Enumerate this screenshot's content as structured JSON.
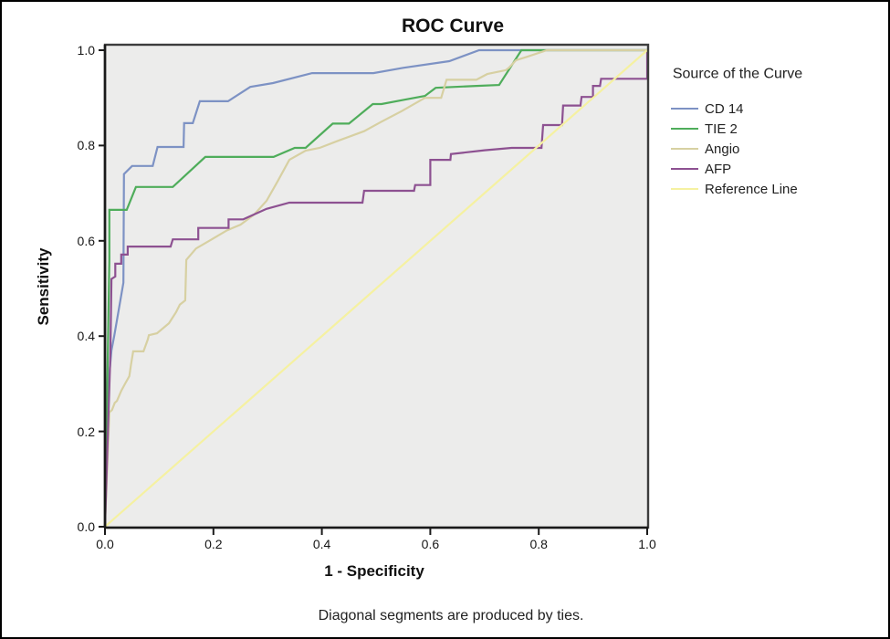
{
  "title": "ROC Curve",
  "axes": {
    "x_label": "1 - Specificity",
    "y_label": "Sensitivity",
    "x_ticks": [
      "0.0",
      "0.2",
      "0.4",
      "0.6",
      "0.8",
      "1.0"
    ],
    "y_ticks": [
      "0.0",
      "0.2",
      "0.4",
      "0.6",
      "0.8",
      "1.0"
    ]
  },
  "footnote": "Diagonal segments are produced by ties.",
  "legend": {
    "title": "Source of the Curve"
  },
  "colors": {
    "plot_background": "#ececeb",
    "plot_frame": "#3d3d3d",
    "axis_line": "#1a1a1a",
    "cd14_blue": "#7d92c4",
    "tie2_green": "#4fad5b",
    "angio_tan": "#d7d0a2",
    "afp_purple": "#8d5191",
    "reference_yellow": "#f5f1a1"
  },
  "chart_data": {
    "type": "line",
    "subtype": "roc-curves",
    "title": "ROC Curve",
    "xlabel": "1 - Specificity",
    "ylabel": "Sensitivity",
    "xlim": [
      0,
      1
    ],
    "ylim": [
      0,
      1
    ],
    "grid": false,
    "legend_position": "right",
    "legend_title": "Source of the Curve",
    "series": [
      {
        "name": "CD 14",
        "color": "#7d92c4",
        "points": [
          [
            0,
            0
          ],
          [
            0.008,
            0.32
          ],
          [
            0.012,
            0.37
          ],
          [
            0.017,
            0.4
          ],
          [
            0.034,
            0.512
          ],
          [
            0.035,
            0.74
          ],
          [
            0.05,
            0.757
          ],
          [
            0.088,
            0.757
          ],
          [
            0.097,
            0.797
          ],
          [
            0.145,
            0.797
          ],
          [
            0.146,
            0.847
          ],
          [
            0.162,
            0.847
          ],
          [
            0.175,
            0.893
          ],
          [
            0.227,
            0.893
          ],
          [
            0.268,
            0.923
          ],
          [
            0.31,
            0.931
          ],
          [
            0.382,
            0.952
          ],
          [
            0.495,
            0.952
          ],
          [
            0.55,
            0.963
          ],
          [
            0.635,
            0.977
          ],
          [
            0.69,
            1
          ],
          [
            1,
            1
          ]
        ]
      },
      {
        "name": "TIE 2",
        "color": "#4fad5b",
        "points": [
          [
            0,
            0
          ],
          [
            0.008,
            0.56
          ],
          [
            0.008,
            0.665
          ],
          [
            0.04,
            0.665
          ],
          [
            0.057,
            0.713
          ],
          [
            0.125,
            0.713
          ],
          [
            0.185,
            0.776
          ],
          [
            0.311,
            0.776
          ],
          [
            0.35,
            0.795
          ],
          [
            0.37,
            0.795
          ],
          [
            0.42,
            0.846
          ],
          [
            0.45,
            0.846
          ],
          [
            0.494,
            0.887
          ],
          [
            0.51,
            0.887
          ],
          [
            0.556,
            0.897
          ],
          [
            0.59,
            0.904
          ],
          [
            0.61,
            0.921
          ],
          [
            0.685,
            0.925
          ],
          [
            0.727,
            0.927
          ],
          [
            0.768,
            1
          ],
          [
            1,
            1
          ]
        ]
      },
      {
        "name": "Angio",
        "color": "#d7d0a2",
        "points": [
          [
            0,
            0
          ],
          [
            0.008,
            0.24
          ],
          [
            0.013,
            0.245
          ],
          [
            0.018,
            0.26
          ],
          [
            0.022,
            0.264
          ],
          [
            0.03,
            0.285
          ],
          [
            0.037,
            0.3
          ],
          [
            0.045,
            0.316
          ],
          [
            0.048,
            0.34
          ],
          [
            0.052,
            0.368
          ],
          [
            0.071,
            0.368
          ],
          [
            0.079,
            0.393
          ],
          [
            0.081,
            0.402
          ],
          [
            0.096,
            0.406
          ],
          [
            0.118,
            0.427
          ],
          [
            0.131,
            0.45
          ],
          [
            0.138,
            0.466
          ],
          [
            0.148,
            0.475
          ],
          [
            0.15,
            0.56
          ],
          [
            0.168,
            0.584
          ],
          [
            0.197,
            0.603
          ],
          [
            0.225,
            0.622
          ],
          [
            0.25,
            0.634
          ],
          [
            0.275,
            0.655
          ],
          [
            0.298,
            0.684
          ],
          [
            0.318,
            0.724
          ],
          [
            0.34,
            0.77
          ],
          [
            0.37,
            0.789
          ],
          [
            0.396,
            0.795
          ],
          [
            0.43,
            0.81
          ],
          [
            0.478,
            0.83
          ],
          [
            0.51,
            0.85
          ],
          [
            0.547,
            0.872
          ],
          [
            0.59,
            0.9
          ],
          [
            0.62,
            0.9
          ],
          [
            0.63,
            0.938
          ],
          [
            0.685,
            0.938
          ],
          [
            0.705,
            0.95
          ],
          [
            0.739,
            0.958
          ],
          [
            0.745,
            0.963
          ],
          [
            0.758,
            0.979
          ],
          [
            0.778,
            0.986
          ],
          [
            0.815,
            1
          ],
          [
            1,
            1
          ]
        ]
      },
      {
        "name": "AFP",
        "color": "#8d5191",
        "points": [
          [
            0,
            0
          ],
          [
            0.01,
            0.36
          ],
          [
            0.012,
            0.52
          ],
          [
            0.019,
            0.525
          ],
          [
            0.019,
            0.552
          ],
          [
            0.03,
            0.552
          ],
          [
            0.03,
            0.571
          ],
          [
            0.042,
            0.571
          ],
          [
            0.042,
            0.588
          ],
          [
            0.121,
            0.588
          ],
          [
            0.125,
            0.603
          ],
          [
            0.172,
            0.603
          ],
          [
            0.172,
            0.627
          ],
          [
            0.228,
            0.627
          ],
          [
            0.228,
            0.645
          ],
          [
            0.255,
            0.645
          ],
          [
            0.298,
            0.667
          ],
          [
            0.34,
            0.68
          ],
          [
            0.475,
            0.68
          ],
          [
            0.478,
            0.705
          ],
          [
            0.57,
            0.705
          ],
          [
            0.572,
            0.717
          ],
          [
            0.6,
            0.717
          ],
          [
            0.6,
            0.77
          ],
          [
            0.637,
            0.77
          ],
          [
            0.638,
            0.782
          ],
          [
            0.7,
            0.79
          ],
          [
            0.75,
            0.795
          ],
          [
            0.805,
            0.795
          ],
          [
            0.808,
            0.843
          ],
          [
            0.843,
            0.843
          ],
          [
            0.845,
            0.884
          ],
          [
            0.877,
            0.884
          ],
          [
            0.879,
            0.902
          ],
          [
            0.9,
            0.902
          ],
          [
            0.9,
            0.925
          ],
          [
            0.913,
            0.925
          ],
          [
            0.915,
            0.94
          ],
          [
            1,
            0.94
          ],
          [
            1,
            1
          ]
        ]
      },
      {
        "name": "Reference Line",
        "color": "#f5f1a1",
        "points": [
          [
            0,
            0
          ],
          [
            1,
            1
          ]
        ]
      }
    ]
  }
}
